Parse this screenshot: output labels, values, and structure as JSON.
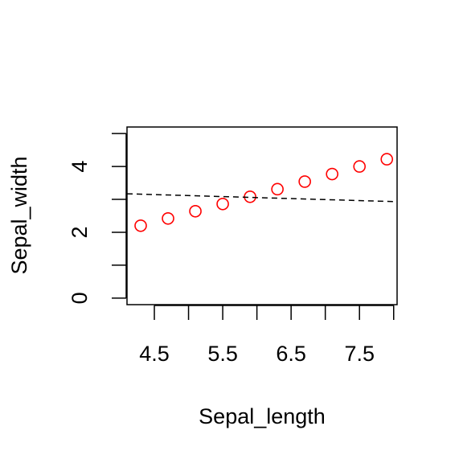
{
  "chart_data": {
    "type": "scatter",
    "title": "",
    "xlabel": "Sepal_length",
    "ylabel": "Sepal_width",
    "xlim": [
      4.1,
      8.05
    ],
    "ylim": [
      -0.2,
      5.2
    ],
    "x_ticks": [
      4.5,
      5.5,
      6.5,
      7.5
    ],
    "x_tick_labels": [
      "4.5",
      "5.5",
      "6.5",
      "7.5"
    ],
    "x_minor_ticks": [
      4.5,
      5.0,
      5.5,
      6.0,
      6.5,
      7.0,
      7.5,
      8.0
    ],
    "y_ticks": [
      0,
      1,
      2,
      3,
      4,
      5
    ],
    "y_tick_labels": [
      "0",
      "",
      "2",
      "",
      "4",
      ""
    ],
    "grid": false,
    "series": [
      {
        "kind": "points",
        "marker": "open-circle",
        "color": "#ff0000",
        "x": [
          4.3,
          4.7,
          5.1,
          5.5,
          5.9,
          6.3,
          6.7,
          7.1,
          7.5,
          7.9
        ],
        "y": [
          2.2,
          2.42,
          2.64,
          2.86,
          3.08,
          3.31,
          3.54,
          3.77,
          4.0,
          4.22
        ]
      },
      {
        "kind": "line",
        "style": "dashed",
        "color": "#000000",
        "x": [
          4.1,
          8.05
        ],
        "y": [
          3.17,
          2.93
        ]
      }
    ]
  }
}
